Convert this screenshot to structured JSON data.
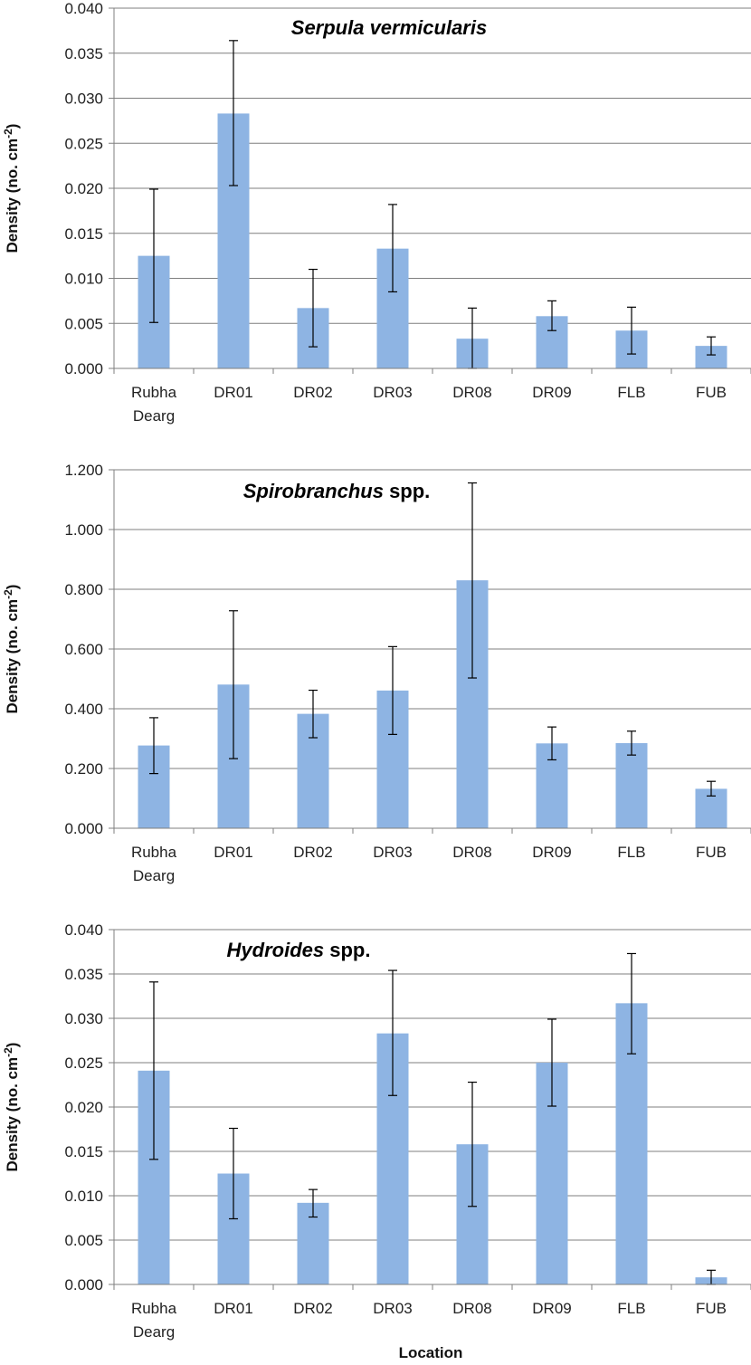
{
  "colors": {
    "bar": "#8eb4e3",
    "grid": "#7f7f7f",
    "axis": "#7f7f7f",
    "error_bar": "#000000"
  },
  "chart_data": [
    {
      "type": "bar",
      "title_italic": "Serpula vermicularis",
      "title_rest": "",
      "ylabel": "Density (no. cm",
      "ylabel_sup": "-2",
      "ylabel_end": ")",
      "xlabel": "",
      "categories": [
        [
          "Rubha",
          "Dearg"
        ],
        [
          "DR01"
        ],
        [
          "DR02"
        ],
        [
          "DR03"
        ],
        [
          "DR08"
        ],
        [
          "DR09"
        ],
        [
          "FLB"
        ],
        [
          "FUB"
        ]
      ],
      "values": [
        0.0125,
        0.0283,
        0.0067,
        0.0133,
        0.0033,
        0.0058,
        0.0042,
        0.0025
      ],
      "error_low": [
        0.0051,
        0.0203,
        0.0024,
        0.0085,
        0.0,
        0.0042,
        0.0016,
        0.0015
      ],
      "error_high": [
        0.0199,
        0.0364,
        0.011,
        0.0182,
        0.0067,
        0.0075,
        0.0068,
        0.0035
      ],
      "ylim": [
        0,
        0.04
      ],
      "yticks": [
        "0.000",
        "0.005",
        "0.010",
        "0.015",
        "0.020",
        "0.025",
        "0.030",
        "0.035",
        "0.040"
      ],
      "grid": true
    },
    {
      "type": "bar",
      "title_italic": "Spirobranchus",
      "title_rest": " spp.",
      "ylabel": "Density (no. cm",
      "ylabel_sup": "-2",
      "ylabel_end": ")",
      "xlabel": "",
      "categories": [
        [
          "Rubha",
          "Dearg"
        ],
        [
          "DR01"
        ],
        [
          "DR02"
        ],
        [
          "DR03"
        ],
        [
          "DR08"
        ],
        [
          "DR09"
        ],
        [
          "FLB"
        ],
        [
          "FUB"
        ]
      ],
      "values": [
        0.277,
        0.481,
        0.383,
        0.461,
        0.83,
        0.284,
        0.285,
        0.132
      ],
      "error_low": [
        0.183,
        0.233,
        0.303,
        0.314,
        0.503,
        0.229,
        0.245,
        0.108
      ],
      "error_high": [
        0.37,
        0.728,
        0.462,
        0.608,
        1.156,
        0.339,
        0.325,
        0.157
      ],
      "ylim": [
        0,
        1.2
      ],
      "yticks": [
        "0.000",
        "0.200",
        "0.400",
        "0.600",
        "0.800",
        "1.000",
        "1.200"
      ],
      "grid": true
    },
    {
      "type": "bar",
      "title_italic": "Hydroides",
      "title_rest": " spp.",
      "ylabel": "Density (no. cm",
      "ylabel_sup": "-2",
      "ylabel_end": ")",
      "xlabel": "Location",
      "categories": [
        [
          "Rubha",
          "Dearg"
        ],
        [
          "DR01"
        ],
        [
          "DR02"
        ],
        [
          "DR03"
        ],
        [
          "DR08"
        ],
        [
          "DR09"
        ],
        [
          "FLB"
        ],
        [
          "FUB"
        ]
      ],
      "values": [
        0.0241,
        0.0125,
        0.0092,
        0.0283,
        0.0158,
        0.025,
        0.0317,
        0.0008
      ],
      "error_low": [
        0.0141,
        0.0074,
        0.0076,
        0.0213,
        0.0088,
        0.0201,
        0.026,
        0.0
      ],
      "error_high": [
        0.0341,
        0.0176,
        0.0107,
        0.0354,
        0.0228,
        0.0299,
        0.0373,
        0.0016
      ],
      "ylim": [
        0,
        0.04
      ],
      "yticks": [
        "0.000",
        "0.005",
        "0.010",
        "0.015",
        "0.020",
        "0.025",
        "0.030",
        "0.035",
        "0.040"
      ],
      "grid": true
    }
  ]
}
